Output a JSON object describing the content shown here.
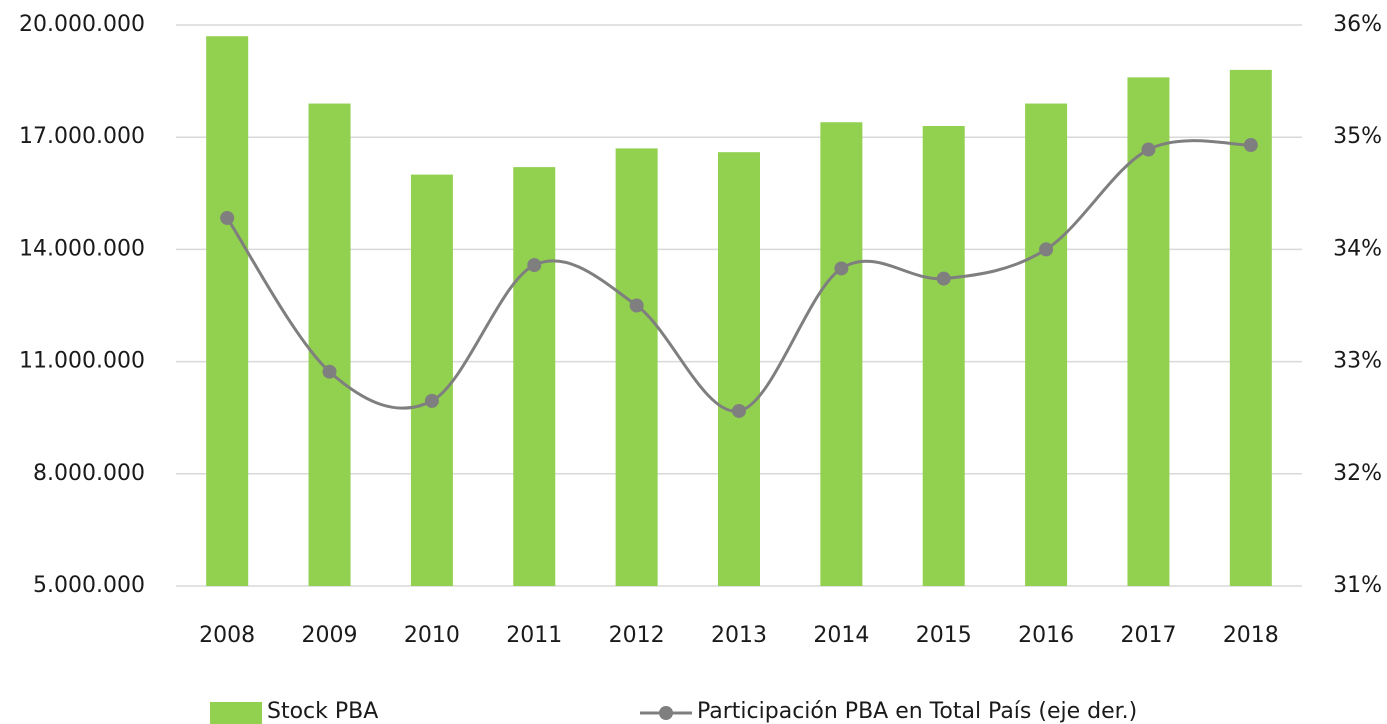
{
  "chart_data": {
    "type": "bar_line",
    "categories": [
      "2008",
      "2009",
      "2010",
      "2011",
      "2012",
      "2013",
      "2014",
      "2015",
      "2016",
      "2017",
      "2018"
    ],
    "series": [
      {
        "name": "Stock PBA",
        "color": "#92d050",
        "type": "bar",
        "values": [
          19700000,
          17900000,
          16000000,
          16200000,
          16700000,
          16600000,
          17400000,
          17300000,
          17900000,
          18600000,
          18800000
        ]
      },
      {
        "name": "Participación PBA en Total País (eje der.)",
        "color": "#7f7f7f",
        "type": "line",
        "axis": "y2",
        "values": [
          34.28,
          32.91,
          32.65,
          33.86,
          33.5,
          32.56,
          33.83,
          33.74,
          34.0,
          34.89,
          34.93
        ]
      }
    ],
    "ylim": [
      5000000,
      20000000
    ],
    "yticks": [
      {
        "value": 5000000,
        "label": "5.000.000"
      },
      {
        "value": 8000000,
        "label": "8.000.000"
      },
      {
        "value": 11000000,
        "label": "11.000.000"
      },
      {
        "value": 14000000,
        "label": "14.000.000"
      },
      {
        "value": 17000000,
        "label": "17.000.000"
      },
      {
        "value": 20000000,
        "label": "20.000.000"
      }
    ],
    "y2lim": [
      31,
      36
    ],
    "y2ticks": [
      {
        "value": 31,
        "label": "31%"
      },
      {
        "value": 32,
        "label": "32%"
      },
      {
        "value": 33,
        "label": "33%"
      },
      {
        "value": 34,
        "label": "34%"
      },
      {
        "value": 35,
        "label": "35%"
      },
      {
        "value": 36,
        "label": "36%"
      }
    ],
    "grid": true,
    "legend": "bottom"
  }
}
